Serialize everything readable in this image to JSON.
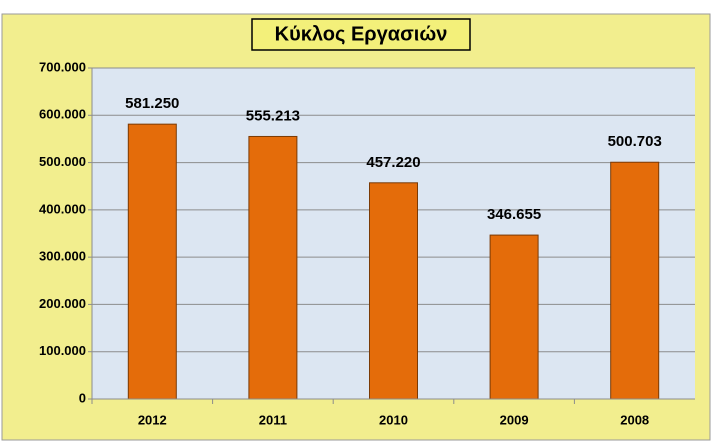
{
  "chart_data": {
    "type": "bar",
    "title": "Κύκλος Εργασιών",
    "categories": [
      "2012",
      "2011",
      "2010",
      "2009",
      "2008"
    ],
    "values": [
      581250,
      555213,
      457220,
      346655,
      500703
    ],
    "value_labels": [
      "581.250",
      "555.213",
      "457.220",
      "346.655",
      "500.703"
    ],
    "color": "#e46c0a",
    "ylim": [
      0,
      700000
    ],
    "yticks": [
      0,
      {
        "value": 100000,
        "label": "100.000"
      },
      {
        "value": 200000,
        "label": "200.000"
      },
      {
        "value": 300000,
        "label": "300.000"
      },
      {
        "value": 400000,
        "label": "400.000"
      },
      {
        "value": 500000,
        "label": "500.000"
      },
      {
        "value": 600000,
        "label": "600.000"
      },
      {
        "value": 700000,
        "label": "700.000"
      }
    ],
    "grid": true
  }
}
